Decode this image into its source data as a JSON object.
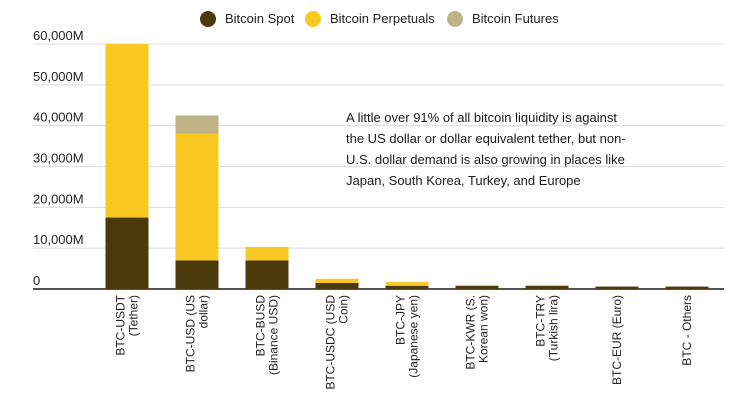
{
  "chart_data": {
    "type": "bar",
    "stacked": true,
    "categories": [
      [
        "BTC-USDT",
        "(Tether)"
      ],
      [
        "BTC-USD (US",
        "dollar)"
      ],
      [
        "BTC-BUSD",
        "(Binance USD)"
      ],
      [
        "BTC-USDC (USD",
        "Coin)"
      ],
      [
        "BTC-JPY",
        "(Japanese yen)"
      ],
      [
        "BTC-KWR (S.",
        "Korean won)"
      ],
      [
        "BTC-TRY",
        "(Turkish lira)"
      ],
      [
        "BTC-EUR (Euro)"
      ],
      [
        "BTC - Others"
      ]
    ],
    "series": [
      {
        "name": "Bitcoin Spot",
        "color": "#4a3a0c",
        "values": [
          17500,
          7000,
          7000,
          1500,
          800,
          800,
          800,
          600,
          600
        ]
      },
      {
        "name": "Bitcoin Perpetuals",
        "color": "#f9c823",
        "values": [
          42500,
          31000,
          3300,
          1000,
          900,
          0,
          0,
          0,
          0
        ]
      },
      {
        "name": "Bitcoin Futures",
        "color": "#bdb384",
        "values": [
          0,
          4500,
          0,
          0,
          0,
          0,
          0,
          0,
          0
        ]
      }
    ],
    "yticks": [
      "0",
      "10,000M",
      "20,000M",
      "30,000M",
      "40,000M",
      "50,000M",
      "60,000M"
    ],
    "ylim": [
      0,
      60000
    ],
    "grid": true,
    "legend_position": "top-center",
    "annotation": [
      "A little over 91% of all bitcoin liquidity is against",
      "the US dollar or dollar equivalent tether, but non-",
      "U.S. dollar demand is also growing in places like",
      "Japan, South Korea, Turkey, and Europe"
    ]
  }
}
